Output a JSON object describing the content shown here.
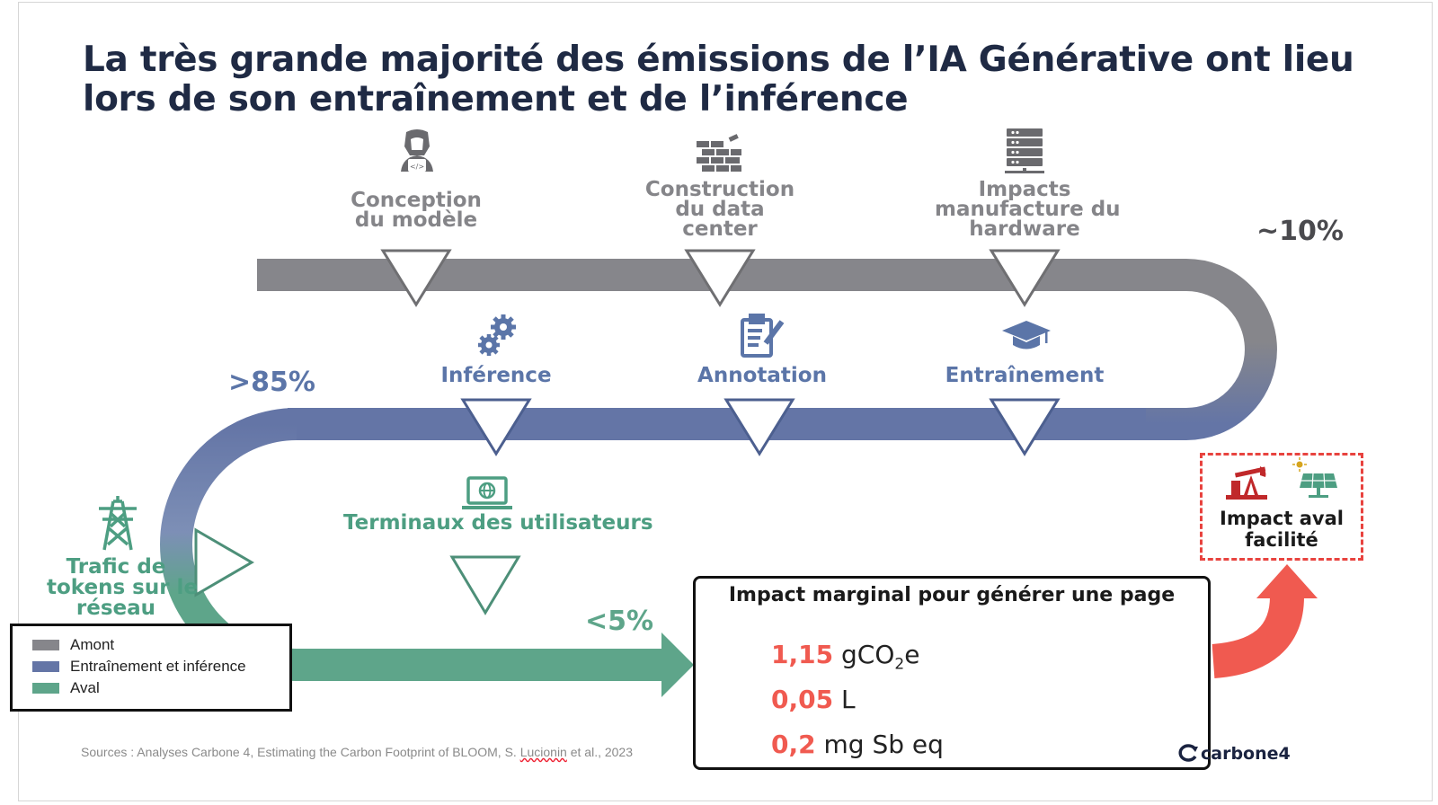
{
  "title": "La très grande majorité des émissions de l’IA Générative ont lieu lors de son entraînement et de l’inférence",
  "colors": {
    "amont": "#86868b",
    "entrainement": "#6475a6",
    "aval": "#5ea58a",
    "highlight": "#f05a50",
    "title": "#1f2a44"
  },
  "stages": {
    "amont": {
      "percent": "~10%",
      "steps": [
        {
          "label_l1": "Conception",
          "label_l2": "du modèle",
          "label_l3": "",
          "icon": "developer-icon"
        },
        {
          "label_l1": "Construction",
          "label_l2": "du data",
          "label_l3": "center",
          "icon": "brick-wall-icon"
        },
        {
          "label_l1": "Impacts",
          "label_l2": "manufacture du",
          "label_l3": "hardware",
          "icon": "server-icon"
        }
      ]
    },
    "entrainement": {
      "percent": ">85%",
      "steps": [
        {
          "label": "Inférence",
          "icon": "gears-icon"
        },
        {
          "label": "Annotation",
          "icon": "clipboard-icon"
        },
        {
          "label": "Entraînement",
          "icon": "graduation-cap-icon"
        }
      ]
    },
    "aval": {
      "percent": "<5%",
      "steps": [
        {
          "label": "Terminaux des utilisateurs",
          "icon": "laptop-globe-icon"
        }
      ],
      "network_l1": "Trafic de",
      "network_l2": "tokens sur le",
      "network_l3": "réseau",
      "network_icon": "power-pylon-icon"
    }
  },
  "legend": [
    "Amont",
    "Entraînement et inférence",
    "Aval"
  ],
  "impact": {
    "title": "Impact marginal pour générer une page",
    "metrics": [
      {
        "value": "1,15",
        "unit_a": "gCO",
        "unit_sub": "2",
        "unit_b": "e"
      },
      {
        "value": "0,05",
        "unit_a": "L",
        "unit_sub": "",
        "unit_b": ""
      },
      {
        "value": "0,2",
        "unit_a": "mg Sb eq",
        "unit_sub": "",
        "unit_b": ""
      }
    ]
  },
  "facilite": {
    "label_l1": "Impact aval",
    "label_l2": "facilité",
    "icons": [
      "oil-pump-icon",
      "solar-panel-icon"
    ]
  },
  "sources": {
    "text_a": "Sources : Analyses Carbone 4, Estimating the Carbon Footprint of BLOOM, S. ",
    "text_ul": "Lucionin",
    "text_b": " et al., 2023"
  },
  "brand": "carbone4"
}
